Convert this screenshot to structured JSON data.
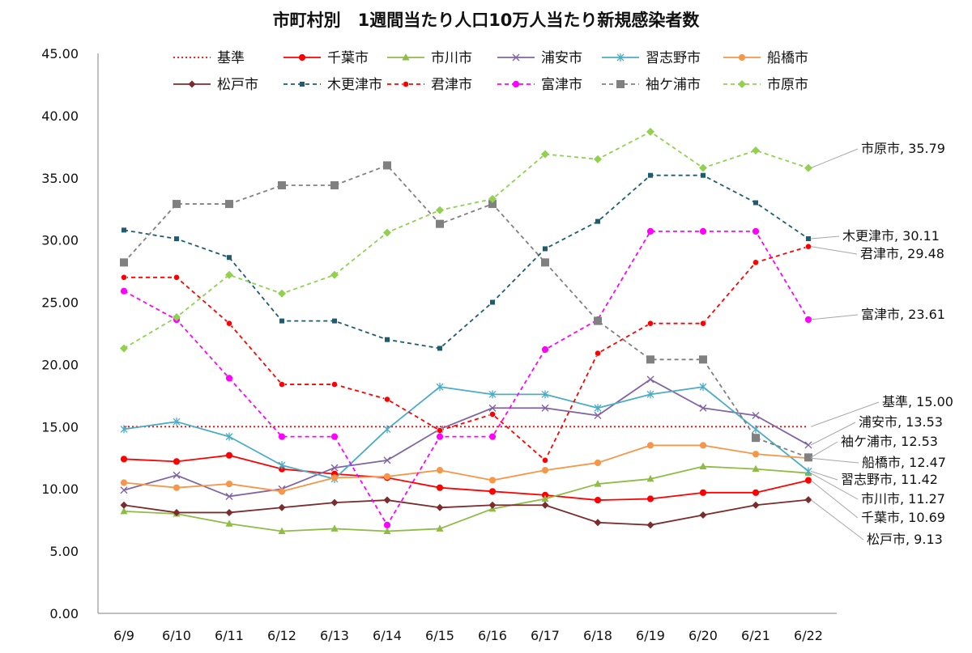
{
  "chart_data": {
    "type": "line",
    "title": "市町村別　1週間当たり人口10万人当たり新規感染者数",
    "xlabel": "",
    "ylabel": "",
    "categories": [
      "6/9",
      "6/10",
      "6/11",
      "6/12",
      "6/13",
      "6/14",
      "6/15",
      "6/16",
      "6/17",
      "6/18",
      "6/19",
      "6/20",
      "6/21",
      "6/22"
    ],
    "ylim": [
      0,
      45
    ],
    "yticks": [
      "0.00",
      "5.00",
      "10.00",
      "15.00",
      "20.00",
      "25.00",
      "30.00",
      "35.00",
      "40.00",
      "45.00"
    ],
    "grid": "none",
    "legend": "top",
    "series": [
      {
        "name": "基準",
        "color": "#ff0000",
        "dash": "dotted",
        "marker": "none",
        "values": [
          15,
          15,
          15,
          15,
          15,
          15,
          15,
          15,
          15,
          15,
          15,
          15,
          15,
          15
        ]
      },
      {
        "name": "千葉市",
        "color": "#ff0000",
        "dash": "solid",
        "marker": "circle",
        "values": [
          12.4,
          12.2,
          12.7,
          11.6,
          11.2,
          10.9,
          10.1,
          9.8,
          9.5,
          9.1,
          9.2,
          9.7,
          9.7,
          10.69
        ]
      },
      {
        "name": "市川市",
        "color": "#8fbc45",
        "dash": "solid",
        "marker": "triangle",
        "values": [
          8.2,
          8.0,
          7.2,
          6.6,
          6.8,
          6.6,
          6.8,
          8.4,
          9.2,
          10.4,
          10.8,
          11.8,
          11.6,
          11.27
        ]
      },
      {
        "name": "浦安市",
        "color": "#8064a2",
        "dash": "solid",
        "marker": "x",
        "values": [
          9.9,
          11.1,
          9.4,
          10.0,
          11.7,
          12.3,
          14.8,
          16.5,
          16.5,
          15.9,
          18.8,
          16.5,
          15.9,
          13.53
        ]
      },
      {
        "name": "習志野市",
        "color": "#4bacc6",
        "dash": "solid",
        "marker": "star",
        "values": [
          14.8,
          15.4,
          14.2,
          11.9,
          10.8,
          14.8,
          18.2,
          17.6,
          17.6,
          16.5,
          17.6,
          18.2,
          14.8,
          11.42
        ]
      },
      {
        "name": "船橋市",
        "color": "#f79646",
        "dash": "solid",
        "marker": "circle",
        "values": [
          10.5,
          10.1,
          10.4,
          9.8,
          10.9,
          11.0,
          11.5,
          10.7,
          11.5,
          12.1,
          13.5,
          13.5,
          12.8,
          12.47
        ]
      },
      {
        "name": "松戸市",
        "color": "#7b2c2c",
        "dash": "solid",
        "marker": "diamond",
        "values": [
          8.7,
          8.1,
          8.1,
          8.5,
          8.9,
          9.1,
          8.5,
          8.7,
          8.7,
          7.3,
          7.1,
          7.9,
          8.7,
          9.13
        ]
      },
      {
        "name": "木更津市",
        "color": "#1f5c70",
        "dash": "dashed",
        "marker": "square",
        "values": [
          30.8,
          30.1,
          28.6,
          23.5,
          23.5,
          22.0,
          21.3,
          25.0,
          29.3,
          31.5,
          35.2,
          35.2,
          33.0,
          30.11
        ]
      },
      {
        "name": "君津市",
        "color": "#ff0000",
        "dash": "dashed",
        "marker": "circle-light",
        "values": [
          27.0,
          27.0,
          23.3,
          18.4,
          18.4,
          17.2,
          14.7,
          16.0,
          12.3,
          20.9,
          23.3,
          23.3,
          28.2,
          29.48
        ]
      },
      {
        "name": "富津市",
        "color": "#ff00ff",
        "dash": "dashed",
        "marker": "circle",
        "values": [
          25.9,
          23.6,
          18.9,
          14.2,
          14.2,
          7.1,
          14.2,
          14.2,
          21.2,
          23.6,
          30.7,
          30.7,
          30.7,
          23.61
        ]
      },
      {
        "name": "袖ケ浦市",
        "color": "#808080",
        "dash": "dashed",
        "marker": "square-light",
        "values": [
          28.2,
          32.9,
          32.9,
          34.4,
          34.4,
          36.0,
          31.3,
          32.9,
          28.2,
          23.5,
          20.4,
          20.4,
          14.1,
          12.53
        ]
      },
      {
        "name": "市原市",
        "color": "#92d050",
        "dash": "dashed",
        "marker": "diamond-light",
        "values": [
          21.3,
          23.8,
          27.2,
          25.7,
          27.2,
          30.6,
          32.4,
          33.3,
          36.9,
          36.5,
          38.7,
          35.8,
          37.2,
          35.79
        ]
      }
    ],
    "annotations": [
      {
        "text": "市原市, 35.79"
      },
      {
        "text": "木更津市, 30.11"
      },
      {
        "text": "君津市, 29.48"
      },
      {
        "text": "富津市, 23.61"
      },
      {
        "text": "基準, 15.00"
      },
      {
        "text": "浦安市, 13.53"
      },
      {
        "text": "袖ケ浦市, 12.53"
      },
      {
        "text": "船橋市, 12.47"
      },
      {
        "text": "習志野市, 11.42"
      },
      {
        "text": "市川市, 11.27"
      },
      {
        "text": "千葉市, 10.69"
      },
      {
        "text": "松戸市, 9.13"
      }
    ]
  }
}
